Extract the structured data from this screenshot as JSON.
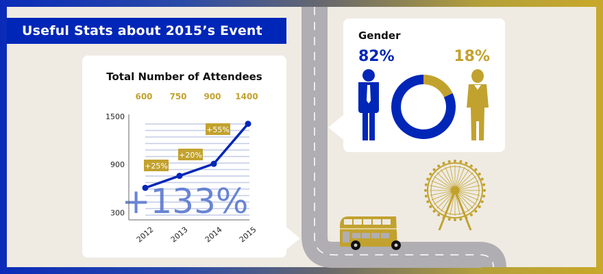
{
  "title": "Useful Stats about 2015’s Event",
  "colors": {
    "blue": "#0026b8",
    "gold": "#c2a22e",
    "light_blue": "#5a78d0",
    "road": "#b0aeb2",
    "bg": "#efebe3"
  },
  "chart_data": [
    {
      "type": "line",
      "title": "Total Number of Attendees",
      "categories": [
        "2012",
        "2013",
        "2014",
        "2015"
      ],
      "values": [
        600,
        750,
        900,
        1400
      ],
      "value_labels": [
        "600",
        "750",
        "900",
        "1400"
      ],
      "growth_labels": [
        "+25%",
        "+20%",
        "+55%"
      ],
      "overall_growth": "+133%",
      "yticks": [
        "300",
        "900",
        "1500"
      ],
      "ytick_values": [
        300,
        900,
        1500
      ],
      "ylim": [
        0,
        1500
      ],
      "xlabel": "",
      "ylabel": "",
      "grid": true
    },
    {
      "type": "pie",
      "title": "Gender",
      "labels": [
        "Male",
        "Female"
      ],
      "values": [
        82,
        18
      ],
      "value_labels": [
        "82%",
        "18%"
      ]
    }
  ],
  "icons": {
    "male": "male-figure-icon",
    "female": "female-figure-icon",
    "bus": "double-decker-bus-icon",
    "wheel": "ferris-wheel-icon"
  }
}
